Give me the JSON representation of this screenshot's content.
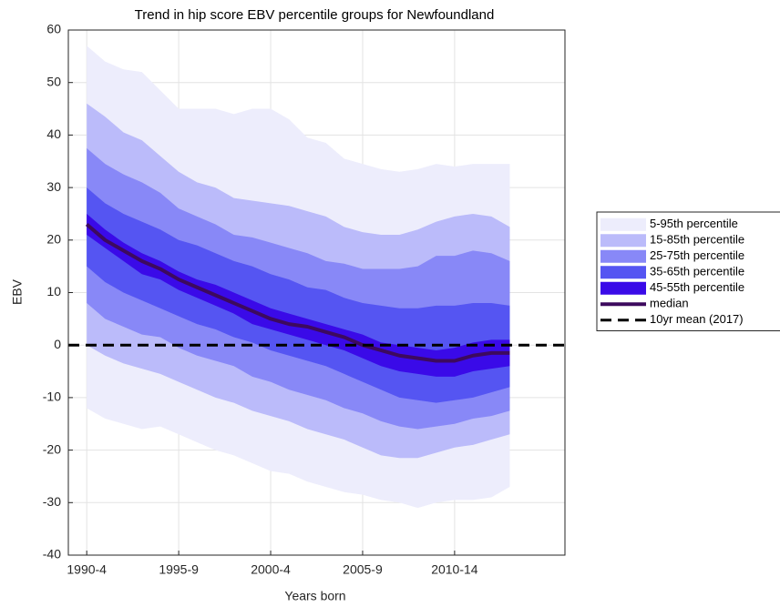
{
  "chart_data": {
    "type": "band",
    "title": "Trend in hip score EBV percentile groups for Newfoundland",
    "x_label": "Years born",
    "y_label": "EBV",
    "x": [
      1,
      2,
      3,
      4,
      5,
      6,
      7,
      8,
      9,
      10,
      11,
      12,
      13,
      14,
      15,
      16,
      17,
      18,
      19,
      20,
      21,
      22,
      23,
      24
    ],
    "xlim": [
      0,
      27
    ],
    "xticks": [
      {
        "value": 1,
        "label": "1990-4"
      },
      {
        "value": 6,
        "label": "1995-9"
      },
      {
        "value": 11,
        "label": "2000-4"
      },
      {
        "value": 16,
        "label": "2005-9"
      },
      {
        "value": 21,
        "label": "2010-14"
      }
    ],
    "ylim": [
      -40,
      60
    ],
    "yticks": [
      -40,
      -30,
      -20,
      -10,
      0,
      10,
      20,
      30,
      40,
      50,
      60
    ],
    "grid": true,
    "legend_position": "right",
    "series": [
      {
        "name": "5-95th percentile",
        "color": "#ededfc",
        "upper": [
          57,
          54,
          52.5,
          52,
          48.5,
          45,
          45,
          45,
          44,
          45,
          45,
          43,
          39.5,
          38.5,
          35.5,
          34.5,
          33.5,
          33,
          33.5,
          34.5,
          34,
          34.5,
          34.5,
          34.5
        ],
        "lower": [
          -12,
          -14,
          -15,
          -16,
          -15.5,
          -17,
          -18.5,
          -20,
          -21,
          -22.5,
          -24,
          -24.5,
          -26,
          -27,
          -28,
          -28.5,
          -29.5,
          -30,
          -31,
          -30,
          -29.5,
          -29.5,
          -29,
          -27
        ]
      },
      {
        "name": "15-85th percentile",
        "color": "#bbbbfa",
        "upper": [
          46,
          43.5,
          40.5,
          39,
          36,
          33,
          31,
          30,
          28,
          27.5,
          27,
          26.5,
          25.5,
          24.5,
          22.5,
          21.5,
          21,
          21,
          22,
          23.5,
          24.5,
          25,
          24.5,
          22.5
        ],
        "lower": [
          0,
          -2,
          -3.5,
          -4.5,
          -5.5,
          -7,
          -8.5,
          -10,
          -11,
          -12.5,
          -13.5,
          -14.5,
          -16,
          -17,
          -18,
          -19.5,
          -21,
          -21.5,
          -21.5,
          -20.5,
          -19.5,
          -19,
          -18,
          -17
        ]
      },
      {
        "name": "25-75th percentile",
        "color": "#8888f7",
        "upper": [
          37.5,
          34.5,
          32.5,
          31,
          29,
          26,
          24.5,
          23,
          21,
          20.5,
          19.5,
          18.5,
          17.5,
          16,
          15.5,
          14.5,
          14.5,
          14.5,
          15,
          17,
          17,
          18,
          17.5,
          16
        ],
        "lower": [
          8,
          5,
          3.5,
          2,
          1.5,
          -0.5,
          -2,
          -3,
          -4,
          -6,
          -7,
          -8.5,
          -9.5,
          -10.5,
          -12,
          -13,
          -14.5,
          -15.5,
          -16,
          -15.5,
          -15,
          -14,
          -13.5,
          -12.5
        ]
      },
      {
        "name": "35-65th percentile",
        "color": "#5555f2",
        "upper": [
          30,
          27,
          25,
          23.5,
          22,
          20,
          19,
          17.5,
          16,
          15,
          13.5,
          12.5,
          11,
          10.5,
          9,
          8,
          7.5,
          7,
          7,
          7.5,
          7.5,
          8,
          8,
          7.5
        ],
        "lower": [
          15,
          12,
          10,
          8.5,
          7,
          5.5,
          4,
          3,
          1.5,
          0.5,
          -1,
          -2,
          -3,
          -4,
          -5.5,
          -7,
          -8.5,
          -10,
          -10.5,
          -11,
          -10.5,
          -10,
          -9,
          -8
        ]
      },
      {
        "name": "45-55th percentile",
        "color": "#3a0ae8",
        "upper": [
          25,
          22,
          19.5,
          17.5,
          16,
          14,
          12.5,
          11.5,
          10,
          8.5,
          7,
          6,
          5,
          4,
          3,
          2,
          0.5,
          0,
          -0.5,
          -1,
          -0.5,
          0.5,
          1,
          1
        ],
        "lower": [
          21,
          18.5,
          16,
          13.5,
          12.5,
          10.5,
          9,
          7.5,
          6,
          4,
          3,
          2,
          1,
          0,
          -1,
          -2.5,
          -4,
          -5,
          -5.5,
          -6,
          -6,
          -5,
          -4.5,
          -4
        ]
      },
      {
        "name": "median",
        "type": "line",
        "color": "#3d0a5e",
        "values": [
          23,
          20,
          18,
          16,
          14.5,
          12.5,
          11,
          9.5,
          8,
          6.5,
          5,
          4,
          3.5,
          2.5,
          1.5,
          0,
          -1,
          -2,
          -2.5,
          -3,
          -3,
          -2,
          -1.5,
          -1.5
        ]
      }
    ],
    "reference_lines": [
      {
        "name": "10yr mean (2017)",
        "value": 0,
        "color": "#000000",
        "dashed": true
      }
    ]
  }
}
